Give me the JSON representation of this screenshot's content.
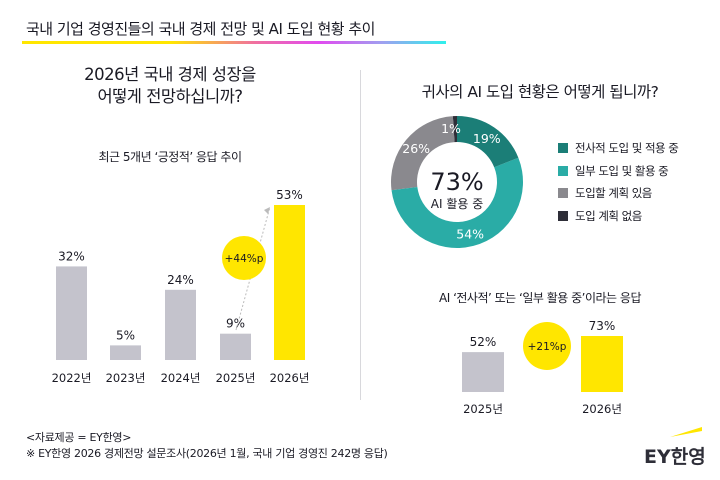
{
  "title": "국내 기업 경영진들의 국내 경제 전망 및 AI 도입 현황 추이",
  "left": {
    "question_line1": "2026년 국내 경제 성장을",
    "question_line2": "어떻게 전망하십니까?",
    "subtitle": "최근 5개년 ‘긍정적’ 응답 추이"
  },
  "right": {
    "question": "귀사의 AI 도입 현황은 어떻게 됩니까?",
    "center_value": "73%",
    "center_label": "AI 활용 중",
    "subtitle": "AI ‘전사적’ 또는 ‘일부 활용 중’이라는 응답"
  },
  "footer": {
    "source": "<자료제공 = EY한영>",
    "note": "※ EY한영 2026 경제전망 설문조사(2026년 1월, 국내 기업 경영진 242명 응답)"
  },
  "logo": {
    "text": "EY한영",
    "accent": "#ffe600"
  },
  "chart_data": [
    {
      "type": "bar",
      "categories": [
        "2022년",
        "2023년",
        "2024년",
        "2025년",
        "2026년"
      ],
      "values": [
        32,
        5,
        24,
        9,
        53
      ],
      "labels": [
        "32%",
        "5%",
        "24%",
        "9%",
        "53%"
      ],
      "colors": [
        "#c4c3cc",
        "#c4c3cc",
        "#c4c3cc",
        "#c4c3cc",
        "#ffe600"
      ],
      "annotation": "+44%p",
      "ylim": [
        0,
        53
      ]
    },
    {
      "type": "pie",
      "series": [
        {
          "name": "전사적 도입 및 적용 중",
          "value": 19,
          "label": "19%",
          "color": "#1b7e77"
        },
        {
          "name": "일부 도입 및 활용 중",
          "value": 54,
          "label": "54%",
          "color": "#2aaca6"
        },
        {
          "name": "도입할 계획 있음",
          "value": 26,
          "label": "26%",
          "color": "#8a898e"
        },
        {
          "name": "도입 계획 없음",
          "value": 1,
          "label": "1%",
          "color": "#2e2e38"
        }
      ],
      "legend": "right"
    },
    {
      "type": "bar",
      "categories": [
        "2025년",
        "2026년"
      ],
      "values": [
        52,
        73
      ],
      "labels": [
        "52%",
        "73%"
      ],
      "colors": [
        "#c4c3cc",
        "#ffe600"
      ],
      "annotation": "+21%p",
      "ylim": [
        0,
        73
      ]
    }
  ]
}
